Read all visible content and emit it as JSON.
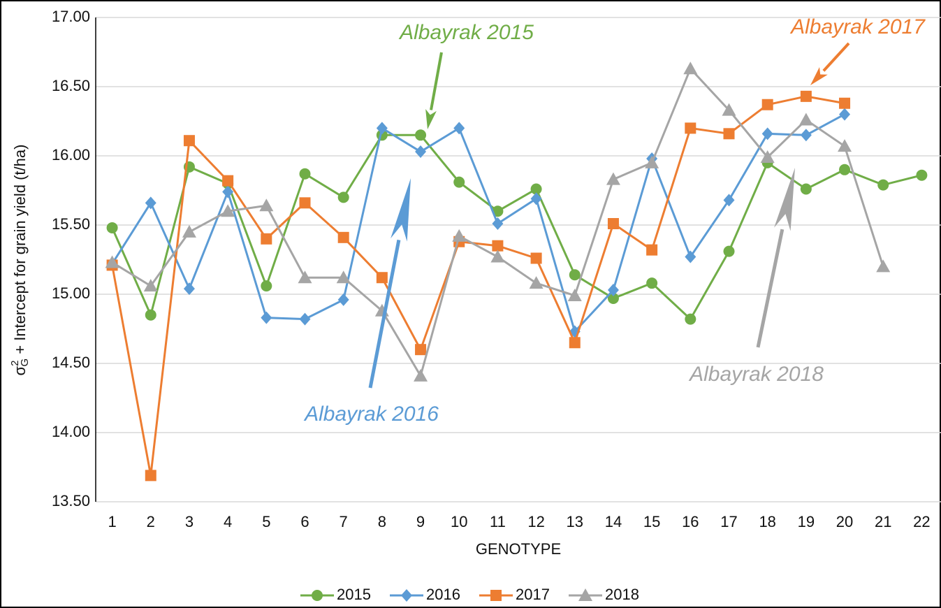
{
  "chart_data": {
    "type": "line",
    "x_label": "GENOTYPE",
    "y_label": {
      "symbol": "σ",
      "sup": "2",
      "sub": "G",
      "text": " + Intercept for grain yield (t/ha)"
    },
    "categories": [
      "1",
      "2",
      "3",
      "4",
      "5",
      "6",
      "7",
      "8",
      "9",
      "10",
      "11",
      "12",
      "13",
      "14",
      "15",
      "16",
      "17",
      "18",
      "19",
      "20",
      "21",
      "22"
    ],
    "series": [
      {
        "name": "2015",
        "color": "#70ad47",
        "marker": "circle",
        "values": [
          15.48,
          14.85,
          15.92,
          15.8,
          15.06,
          15.87,
          15.7,
          16.15,
          16.15,
          15.81,
          15.6,
          15.76,
          15.14,
          14.97,
          15.08,
          14.82,
          15.31,
          15.95,
          15.76,
          15.9,
          15.79,
          15.86
        ]
      },
      {
        "name": "2016",
        "color": "#5b9bd5",
        "marker": "diamond",
        "values": [
          15.22,
          15.66,
          15.04,
          15.74,
          14.83,
          14.82,
          14.96,
          16.2,
          16.03,
          16.2,
          15.51,
          15.69,
          14.73,
          15.03,
          15.98,
          15.27,
          15.68,
          16.16,
          16.15,
          16.3,
          null,
          null
        ]
      },
      {
        "name": "2017",
        "color": "#ed7d31",
        "marker": "square",
        "values": [
          15.21,
          13.69,
          16.11,
          15.82,
          15.4,
          15.66,
          15.41,
          15.12,
          14.6,
          15.38,
          15.35,
          15.26,
          14.65,
          15.51,
          15.32,
          16.2,
          16.16,
          16.37,
          16.43,
          16.38,
          null,
          null
        ]
      },
      {
        "name": "2018",
        "color": "#a5a5a5",
        "marker": "triangle",
        "values": [
          15.23,
          15.06,
          15.45,
          15.6,
          15.64,
          15.12,
          15.12,
          14.88,
          14.41,
          15.42,
          15.27,
          15.08,
          14.99,
          15.83,
          15.95,
          16.63,
          16.33,
          15.99,
          16.26,
          16.07,
          15.2,
          null
        ]
      }
    ],
    "annotations": [
      "Albayrak 2015",
      "Albayrak 2016",
      "Albayrak 2017",
      "Albayrak 2018"
    ],
    "ylim": [
      13.5,
      17.0
    ],
    "yticks": [
      {
        "value": 13.5,
        "label": "13.50"
      },
      {
        "value": 14,
        "label": "14.00"
      },
      {
        "value": 14.5,
        "label": "14.50"
      },
      {
        "value": 15,
        "label": "15.00"
      },
      {
        "value": 15.5,
        "label": "15.50"
      },
      {
        "value": 16,
        "label": "16.00"
      },
      {
        "value": 16.5,
        "label": "16.50"
      },
      {
        "value": 17,
        "label": "17.00"
      }
    ],
    "grid": true,
    "legend": "bottom"
  }
}
